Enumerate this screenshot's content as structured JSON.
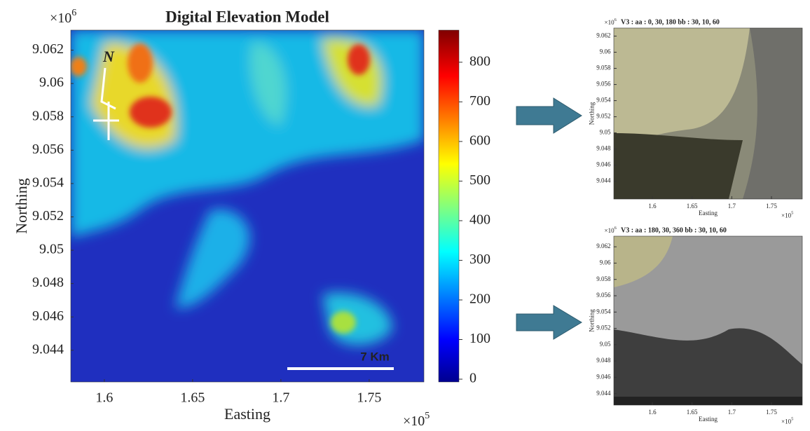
{
  "main": {
    "title": "Digital Elevation Model",
    "x_label": "Easting",
    "y_label": "Northing",
    "x_multiplier": {
      "base": "×10",
      "exponent": "5"
    },
    "y_multiplier": {
      "base": "×10",
      "exponent": "6"
    },
    "xlim": [
      1.581,
      1.781
    ],
    "ylim": [
      9.0421,
      9.0632
    ],
    "xticks": [
      1.6,
      1.65,
      1.7,
      1.75
    ],
    "yticks": [
      9.044,
      9.046,
      9.048,
      9.05,
      9.052,
      9.054,
      9.056,
      9.058,
      9.06,
      9.062
    ],
    "north_label": "N",
    "scale_bar_label": "7 Km"
  },
  "colorbar": {
    "lim": [
      -7,
      881
    ],
    "ticks": [
      0,
      100,
      200,
      300,
      400,
      500,
      600,
      700,
      800
    ]
  },
  "panels": [
    {
      "title": "V3 : aa : 0, 30, 180 bb : 30, 10, 60",
      "x_label": "Easting",
      "y_label": "Northing",
      "x_multiplier": {
        "base": "×10",
        "exponent": "5"
      },
      "y_multiplier": {
        "base": "×10",
        "exponent": "6"
      },
      "xlim": [
        1.5515,
        1.7888
      ],
      "ylim": [
        9.0418,
        9.063
      ],
      "xticks": [
        1.6,
        1.65,
        1.7,
        1.75
      ],
      "yticks": [
        9.044,
        9.046,
        9.048,
        9.05,
        9.052,
        9.054,
        9.056,
        9.058,
        9.06,
        9.062
      ]
    },
    {
      "title": "V3 : aa : 180, 30, 360 bb : 30, 10, 60",
      "x_label": "Easting",
      "y_label": "Northing",
      "x_multiplier": {
        "base": "×10",
        "exponent": "5"
      },
      "y_multiplier": {
        "base": "×10",
        "exponent": "6"
      },
      "xlim": [
        1.5515,
        1.7888
      ],
      "ylim": [
        9.0426,
        9.0633
      ],
      "xticks": [
        1.6,
        1.65,
        1.7,
        1.75
      ],
      "yticks": [
        9.044,
        9.046,
        9.048,
        9.05,
        9.052,
        9.054,
        9.056,
        9.058,
        9.06,
        9.062
      ]
    }
  ]
}
